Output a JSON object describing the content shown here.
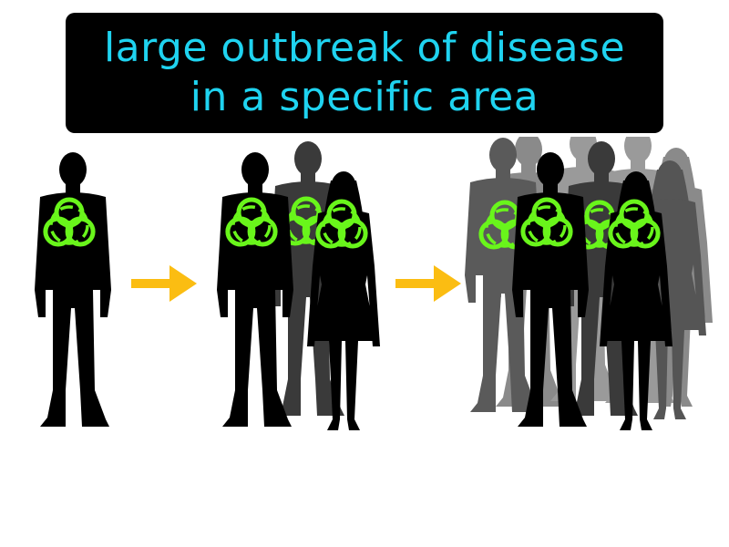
{
  "caption": {
    "line1": "large outbreak of disease",
    "line2": "in a specific area"
  },
  "colors": {
    "caption_text": "#1fd3f0",
    "caption_bg": "#000000",
    "arrow": "#fbbd12",
    "biohazard": "#69f51b",
    "infected_silhouette": "#000000",
    "secondary_silhouette": "#3a3a3a",
    "background_crowd": "#777777"
  },
  "icons": {
    "biohazard": "biohazard-icon",
    "arrow": "arrow-right-icon"
  },
  "stages": [
    {
      "name": "single-infected-person",
      "infected_count": 1
    },
    {
      "name": "spreading-group",
      "infected_count": 3
    },
    {
      "name": "infected-crowd",
      "infected_count": 4
    }
  ]
}
